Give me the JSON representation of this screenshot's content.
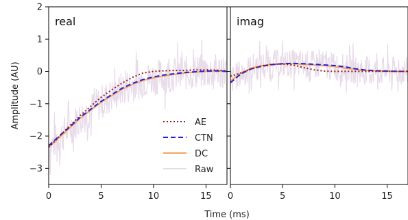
{
  "chart_data": {
    "type": "line",
    "xlabel": "Time (ms)",
    "ylabel": "Amplitude (AU)",
    "xlim": [
      0,
      17
    ],
    "ylim": [
      -3.5,
      2
    ],
    "x_ticks": [
      "0",
      "5",
      "10",
      "15"
    ],
    "y_ticks": [
      "−3",
      "−2",
      "−1",
      "0",
      "1",
      "2"
    ],
    "x_tick_values": [
      0,
      5,
      10,
      15
    ],
    "y_tick_values": [
      -3,
      -2,
      -1,
      0,
      1,
      2
    ],
    "legend_placement": "lower-right of left panel",
    "legend": [
      {
        "name": "AE",
        "color": "#8b1a1a",
        "style": "dotted"
      },
      {
        "name": "CTN",
        "color": "#1f1fe0",
        "style": "dashed"
      },
      {
        "name": "DC",
        "color": "#f5a55a",
        "style": "solid"
      },
      {
        "name": "Raw",
        "color": "#e8dcea",
        "style": "solid"
      }
    ],
    "panels": [
      {
        "label": "real",
        "series": [
          {
            "name": "DC",
            "x": [
              0,
              1,
              2,
              3,
              4,
              5,
              6,
              7,
              8,
              9,
              10,
              11,
              12,
              13,
              14,
              15,
              16,
              17
            ],
            "y": [
              -2.35,
              -2.05,
              -1.75,
              -1.45,
              -1.2,
              -0.95,
              -0.75,
              -0.55,
              -0.4,
              -0.28,
              -0.2,
              -0.14,
              -0.09,
              -0.05,
              -0.02,
              0.0,
              0.01,
              0.0
            ]
          },
          {
            "name": "CTN",
            "x": [
              0,
              1,
              2,
              3,
              4,
              5,
              6,
              7,
              8,
              9,
              10,
              11,
              12,
              13,
              14,
              15,
              16,
              17
            ],
            "y": [
              -2.3,
              -2.0,
              -1.72,
              -1.42,
              -1.17,
              -0.93,
              -0.72,
              -0.52,
              -0.37,
              -0.25,
              -0.17,
              -0.11,
              -0.07,
              -0.03,
              -0.01,
              0.01,
              0.02,
              0.0
            ]
          },
          {
            "name": "AE",
            "x": [
              0,
              1,
              2,
              3,
              4,
              5,
              6,
              7,
              8,
              9,
              10,
              11,
              12,
              13,
              14,
              15,
              16,
              17
            ],
            "y": [
              -2.35,
              -2.02,
              -1.68,
              -1.37,
              -1.08,
              -0.8,
              -0.57,
              -0.36,
              -0.18,
              -0.05,
              0.0,
              0.02,
              0.03,
              0.03,
              0.05,
              0.05,
              0.04,
              0.02
            ]
          }
        ]
      },
      {
        "label": "imag",
        "series": [
          {
            "name": "DC",
            "x": [
              0,
              1,
              2,
              3,
              4,
              5,
              6,
              7,
              8,
              9,
              10,
              11,
              12,
              13,
              14,
              15,
              16,
              17
            ],
            "y": [
              -0.3,
              -0.05,
              0.1,
              0.18,
              0.22,
              0.24,
              0.24,
              0.22,
              0.2,
              0.18,
              0.15,
              0.1,
              0.06,
              0.03,
              0.02,
              0.01,
              0.0,
              0.0
            ]
          },
          {
            "name": "CTN",
            "x": [
              0,
              1,
              2,
              3,
              4,
              5,
              6,
              7,
              8,
              9,
              10,
              11,
              12,
              13,
              14,
              15,
              16,
              17
            ],
            "y": [
              -0.35,
              -0.08,
              0.08,
              0.16,
              0.21,
              0.24,
              0.25,
              0.24,
              0.22,
              0.2,
              0.18,
              0.14,
              0.08,
              0.04,
              0.02,
              0.01,
              0.0,
              0.0
            ]
          },
          {
            "name": "AE",
            "x": [
              0,
              1,
              2,
              3,
              4,
              5,
              6,
              7,
              8,
              9,
              10,
              11,
              12,
              13,
              14,
              15,
              16,
              17
            ],
            "y": [
              -0.15,
              -0.05,
              0.08,
              0.17,
              0.22,
              0.23,
              0.2,
              0.12,
              0.05,
              0.01,
              0.0,
              0.0,
              0.0,
              0.0,
              0.0,
              0.0,
              0.0,
              0.0
            ]
          }
        ]
      }
    ]
  }
}
